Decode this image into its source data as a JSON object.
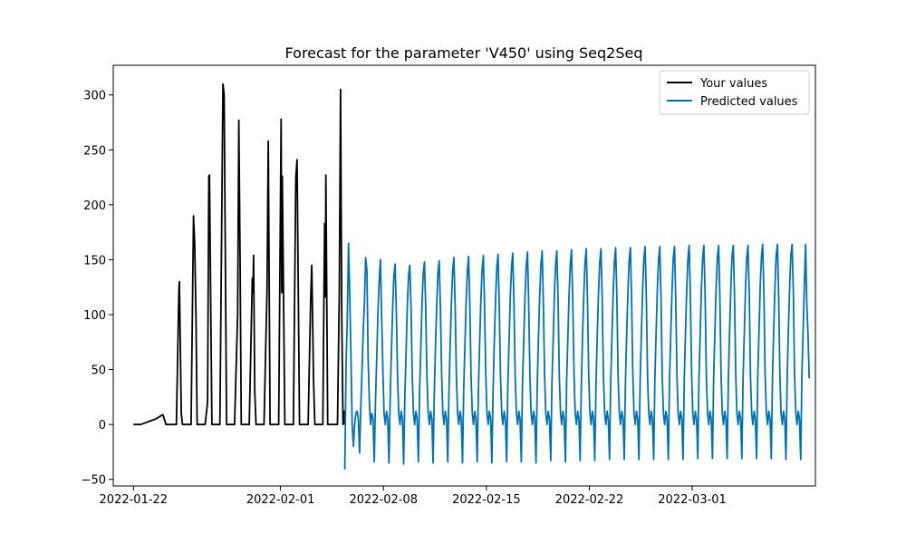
{
  "chart_data": {
    "type": "line",
    "title": "Forecast for the parameter 'V450' using Seq2Seq",
    "xlabel": "",
    "ylabel": "",
    "x_axis": {
      "type": "date",
      "range": [
        "2022-01-20T15:00",
        "2022-03-09T09:00"
      ],
      "ticks": [
        {
          "value": "2022-01-22",
          "label": "2022-01-22"
        },
        {
          "value": "2022-02-01",
          "label": "2022-02-01"
        },
        {
          "value": "2022-02-08",
          "label": "2022-02-08"
        },
        {
          "value": "2022-02-15",
          "label": "2022-02-15"
        },
        {
          "value": "2022-02-22",
          "label": "2022-02-22"
        },
        {
          "value": "2022-03-01",
          "label": "2022-03-01"
        }
      ]
    },
    "y_axis": {
      "range": [
        -56,
        327
      ],
      "ticks": [
        {
          "value": -50,
          "label": "−50"
        },
        {
          "value": 0,
          "label": "0"
        },
        {
          "value": 50,
          "label": "50"
        },
        {
          "value": 100,
          "label": "100"
        },
        {
          "value": 150,
          "label": "150"
        },
        {
          "value": 200,
          "label": "200"
        },
        {
          "value": 250,
          "label": "250"
        },
        {
          "value": 300,
          "label": "300"
        }
      ]
    },
    "legend_position": "top-right",
    "grid": false,
    "series": [
      {
        "name": "Your values",
        "color": "#000000",
        "points": [
          [
            "2022-01-22T00:00",
            0
          ],
          [
            "2022-01-22T12:00",
            0
          ],
          [
            "2022-01-23T12:00",
            5
          ],
          [
            "2022-01-24T00:00",
            9
          ],
          [
            "2022-01-24T05:00",
            0
          ],
          [
            "2022-01-24T22:00",
            0
          ],
          [
            "2022-01-25T02:00",
            120
          ],
          [
            "2022-01-25T03:00",
            130
          ],
          [
            "2022-01-25T06:00",
            10
          ],
          [
            "2022-01-25T08:00",
            0
          ],
          [
            "2022-01-25T22:00",
            0
          ],
          [
            "2022-01-26T02:00",
            190
          ],
          [
            "2022-01-26T04:00",
            165
          ],
          [
            "2022-01-26T06:00",
            100
          ],
          [
            "2022-01-26T08:00",
            0
          ],
          [
            "2022-01-26T21:00",
            0
          ],
          [
            "2022-01-27T01:00",
            20
          ],
          [
            "2022-01-27T03:00",
            226
          ],
          [
            "2022-01-27T04:00",
            227
          ],
          [
            "2022-01-27T08:00",
            0
          ],
          [
            "2022-01-27T21:00",
            0
          ],
          [
            "2022-01-28T02:00",
            310
          ],
          [
            "2022-01-28T04:00",
            300
          ],
          [
            "2022-01-28T08:00",
            0
          ],
          [
            "2022-01-28T21:00",
            0
          ],
          [
            "2022-01-29T02:00",
            100
          ],
          [
            "2022-01-29T04:00",
            277
          ],
          [
            "2022-01-29T06:00",
            150
          ],
          [
            "2022-01-29T08:00",
            0
          ],
          [
            "2022-01-29T21:00",
            0
          ],
          [
            "2022-01-30T02:00",
            133
          ],
          [
            "2022-01-30T03:00",
            120
          ],
          [
            "2022-01-30T04:00",
            154
          ],
          [
            "2022-01-30T06:00",
            30
          ],
          [
            "2022-01-30T08:00",
            0
          ],
          [
            "2022-01-30T21:00",
            0
          ],
          [
            "2022-01-31T01:00",
            100
          ],
          [
            "2022-01-31T02:00",
            120
          ],
          [
            "2022-01-31T04:00",
            258
          ],
          [
            "2022-01-31T07:00",
            0
          ],
          [
            "2022-01-31T21:00",
            0
          ],
          [
            "2022-02-01T01:00",
            278
          ],
          [
            "2022-02-01T02:00",
            120
          ],
          [
            "2022-02-01T03:00",
            226
          ],
          [
            "2022-02-01T07:00",
            0
          ],
          [
            "2022-02-01T21:00",
            0
          ],
          [
            "2022-02-02T01:00",
            225
          ],
          [
            "2022-02-02T03:00",
            241
          ],
          [
            "2022-02-02T07:00",
            0
          ],
          [
            "2022-02-02T21:00",
            0
          ],
          [
            "2022-02-03T01:00",
            110
          ],
          [
            "2022-02-03T03:00",
            145
          ],
          [
            "2022-02-03T06:00",
            40
          ],
          [
            "2022-02-03T08:00",
            0
          ],
          [
            "2022-02-03T21:00",
            0
          ],
          [
            "2022-02-04T00:00",
            183
          ],
          [
            "2022-02-04T01:00",
            116
          ],
          [
            "2022-02-04T02:00",
            227
          ],
          [
            "2022-02-04T05:00",
            0
          ],
          [
            "2022-02-04T21:00",
            0
          ],
          [
            "2022-02-05T00:00",
            120
          ],
          [
            "2022-02-05T02:00",
            305
          ],
          [
            "2022-02-05T04:00",
            100
          ],
          [
            "2022-02-05T06:00",
            0
          ],
          [
            "2022-02-05T08:00",
            12
          ],
          [
            "2022-02-05T09:00",
            0
          ]
        ]
      },
      {
        "name": "Predicted values",
        "color": "#0072b2",
        "start": "2022-02-05T09:00",
        "step_hours": 2,
        "cycles": [
          [
            -41,
            56,
            95,
            165,
            120,
            60,
            0,
            -20,
            0,
            10,
            12,
            5
          ],
          [
            -26,
            15,
            50,
            85,
            112,
            152,
            140,
            60,
            20,
            0,
            10,
            5
          ],
          [
            -34,
            20,
            60,
            100,
            130,
            150,
            100,
            50,
            10,
            0,
            12,
            5
          ],
          [
            -35,
            25,
            65,
            105,
            135,
            146,
            105,
            45,
            10,
            0,
            12,
            5
          ],
          [
            -36,
            28,
            68,
            108,
            136,
            145,
            106,
            45,
            10,
            0,
            12,
            5
          ],
          [
            -34,
            30,
            70,
            110,
            138,
            148,
            106,
            45,
            10,
            0,
            12,
            5
          ],
          [
            -35,
            30,
            72,
            110,
            138,
            149,
            106,
            45,
            10,
            0,
            12,
            5
          ],
          [
            -34,
            32,
            73,
            112,
            140,
            152,
            108,
            45,
            10,
            0,
            12,
            5
          ],
          [
            -35,
            32,
            73,
            112,
            140,
            153,
            108,
            45,
            10,
            0,
            12,
            5
          ],
          [
            -34,
            33,
            74,
            113,
            141,
            154,
            109,
            45,
            10,
            0,
            12,
            5
          ],
          [
            -35,
            34,
            75,
            114,
            142,
            155,
            110,
            45,
            10,
            0,
            12,
            5
          ],
          [
            -34,
            35,
            76,
            115,
            143,
            156,
            111,
            45,
            10,
            0,
            12,
            5
          ],
          [
            -34,
            36,
            77,
            116,
            144,
            157,
            112,
            45,
            10,
            0,
            12,
            5
          ],
          [
            -35,
            36,
            78,
            117,
            145,
            158,
            112,
            45,
            10,
            0,
            12,
            5
          ],
          [
            -33,
            37,
            78,
            118,
            146,
            158,
            113,
            45,
            10,
            0,
            12,
            5
          ],
          [
            -34,
            38,
            79,
            118,
            146,
            159,
            113,
            45,
            10,
            0,
            12,
            5
          ],
          [
            -33,
            38,
            80,
            119,
            147,
            160,
            114,
            45,
            10,
            0,
            12,
            5
          ],
          [
            -33,
            39,
            80,
            120,
            148,
            160,
            114,
            45,
            10,
            0,
            12,
            5
          ],
          [
            -32,
            40,
            81,
            120,
            148,
            161,
            115,
            45,
            10,
            0,
            12,
            5
          ],
          [
            -32,
            40,
            82,
            121,
            149,
            161,
            115,
            45,
            10,
            0,
            12,
            5
          ],
          [
            -32,
            41,
            82,
            122,
            150,
            162,
            116,
            45,
            10,
            0,
            12,
            5
          ],
          [
            -32,
            41,
            83,
            122,
            150,
            162,
            116,
            45,
            10,
            0,
            12,
            5
          ],
          [
            -32,
            42,
            83,
            123,
            151,
            162,
            116,
            45,
            10,
            0,
            12,
            5
          ],
          [
            -32,
            42,
            84,
            123,
            151,
            163,
            117,
            45,
            10,
            0,
            12,
            5
          ],
          [
            -31,
            43,
            84,
            124,
            152,
            163,
            117,
            45,
            10,
            0,
            12,
            5
          ],
          [
            -31,
            43,
            85,
            124,
            152,
            163,
            118,
            45,
            10,
            0,
            12,
            5
          ],
          [
            -31,
            44,
            85,
            125,
            153,
            163,
            118,
            45,
            10,
            0,
            12,
            5
          ],
          [
            -31,
            44,
            85,
            125,
            153,
            163,
            118,
            45,
            10,
            0,
            12,
            5
          ],
          [
            -31,
            44,
            86,
            126,
            153,
            164,
            119,
            45,
            10,
            0,
            12,
            5
          ],
          [
            -31,
            45,
            86,
            126,
            154,
            164,
            119,
            45,
            10,
            0,
            12,
            5
          ],
          [
            -32,
            45,
            87,
            126,
            154,
            164,
            119,
            45,
            10,
            0,
            12,
            5
          ],
          [
            -32,
            45,
            87,
            127,
            164,
            110,
            80,
            42
          ]
        ]
      }
    ]
  }
}
